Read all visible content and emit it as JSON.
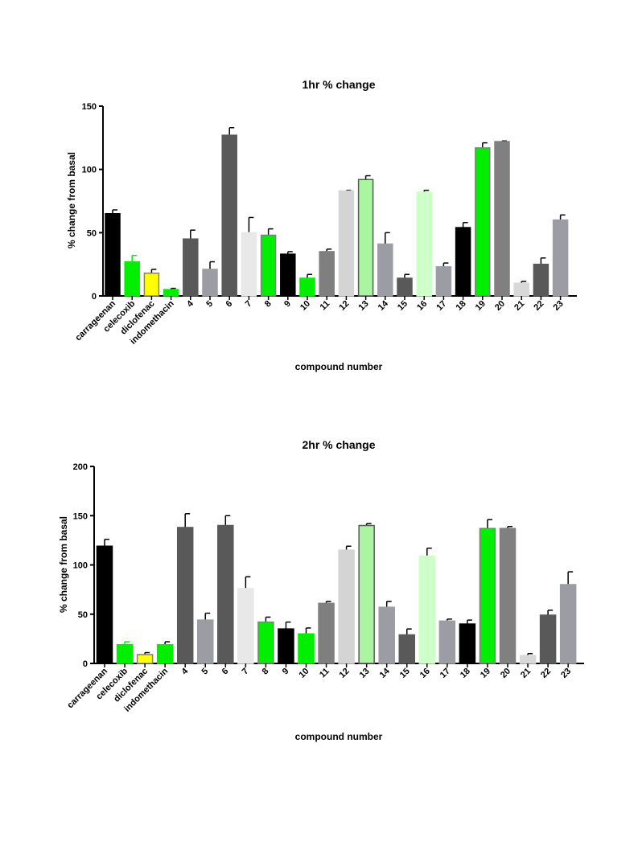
{
  "chart_data": [
    {
      "type": "bar",
      "title": "1hr % change",
      "xlabel": "compound number",
      "ylabel": "% change from basal",
      "ylim": [
        0,
        150
      ],
      "yticks": [
        0,
        50,
        100,
        150
      ],
      "grid": false,
      "categories": [
        "carrageenan",
        "celecoxib",
        "diclofenac",
        "indomethacin",
        "4",
        "5",
        "6",
        "7",
        "8",
        "9",
        "10",
        "11",
        "12",
        "13",
        "14",
        "15",
        "16",
        "17",
        "18",
        "19",
        "20",
        "21",
        "22",
        "23"
      ],
      "values": [
        65,
        27,
        18,
        5,
        45,
        21,
        127,
        50,
        48,
        33,
        14,
        35,
        83,
        92,
        41,
        14,
        82,
        23,
        54,
        117,
        122,
        10,
        25,
        60
      ],
      "errors": [
        3,
        5,
        3,
        1,
        7,
        6,
        6,
        12,
        5,
        2,
        3,
        2,
        0.5,
        3,
        9,
        3,
        1.5,
        3,
        4,
        4,
        0.5,
        1.5,
        5,
        4
      ],
      "fills": [
        "#000000",
        "#00ee00",
        "#ffff00",
        "#00ee00",
        "#595959",
        "#9c9ca4",
        "#595959",
        "#e8e8e8",
        "#00ee00",
        "#000000",
        "#00ee00",
        "#7f7f7f",
        "#d4d4d4",
        "#aaf5a0",
        "#9c9ca4",
        "#595959",
        "#cfffc8",
        "#9c9ca4",
        "#000000",
        "#00ee00",
        "#808080",
        "#d8d8d8",
        "#595959",
        "#9c9ca4"
      ],
      "strokes": [
        "#000000",
        "#00ee00",
        "#808080",
        "#00ee00",
        "#595959",
        "#9c9ca4",
        "#595959",
        "#e8e8e8",
        "#808080",
        "#000000",
        "#00ee00",
        "#7f7f7f",
        "#d4d4d4",
        "#595959",
        "#9c9ca4",
        "#595959",
        "#cfffc8",
        "#9c9ca4",
        "#000000",
        "#808080",
        "#808080",
        "#d8d8d8",
        "#595959",
        "#9c9ca4"
      ],
      "errorColors": [
        "#000000",
        "#00ee00",
        "#000000",
        "#000000",
        "#000000",
        "#000000",
        "#000000",
        "#000000",
        "#000000",
        "#000000",
        "#000000",
        "#000000",
        "#000000",
        "#000000",
        "#000000",
        "#000000",
        "#000000",
        "#000000",
        "#000000",
        "#000000",
        "#000000",
        "#000000",
        "#000000",
        "#000000"
      ]
    },
    {
      "type": "bar",
      "title": "2hr % change",
      "xlabel": "compound number",
      "ylabel": "% change from basal",
      "ylim": [
        0,
        200
      ],
      "yticks": [
        0,
        50,
        100,
        150,
        200
      ],
      "grid": false,
      "categories": [
        "carrageenan",
        "celecoxib",
        "diclofenac",
        "indomethacin",
        "4",
        "5",
        "6",
        "7",
        "8",
        "9",
        "10",
        "11",
        "12",
        "13",
        "14",
        "15",
        "16",
        "17",
        "18",
        "19",
        "20",
        "21",
        "22",
        "23"
      ],
      "values": [
        119,
        19,
        9,
        19,
        138,
        44,
        140,
        76,
        42,
        35,
        30,
        61,
        115,
        140,
        57,
        29,
        109,
        43,
        40,
        137,
        137,
        8,
        49,
        80
      ],
      "errors": [
        7,
        3,
        2,
        3,
        14,
        7,
        10,
        12,
        5,
        7,
        6,
        2,
        4,
        2,
        6,
        6,
        8,
        2,
        4,
        9,
        2,
        2,
        5,
        13
      ],
      "fills": [
        "#000000",
        "#00ee00",
        "#ffff00",
        "#00ee00",
        "#595959",
        "#9c9ca4",
        "#595959",
        "#e8e8e8",
        "#00ee00",
        "#000000",
        "#00ee00",
        "#7f7f7f",
        "#d4d4d4",
        "#aaf5a0",
        "#9c9ca4",
        "#595959",
        "#cfffc8",
        "#9c9ca4",
        "#000000",
        "#00ee00",
        "#808080",
        "#d8d8d8",
        "#595959",
        "#9c9ca4"
      ],
      "strokes": [
        "#000000",
        "#00ee00",
        "#808080",
        "#00ee00",
        "#595959",
        "#9c9ca4",
        "#595959",
        "#e8e8e8",
        "#808080",
        "#000000",
        "#00ee00",
        "#7f7f7f",
        "#d4d4d4",
        "#595959",
        "#9c9ca4",
        "#595959",
        "#cfffc8",
        "#9c9ca4",
        "#000000",
        "#808080",
        "#808080",
        "#d8d8d8",
        "#595959",
        "#9c9ca4"
      ],
      "errorColors": [
        "#000000",
        "#00ee00",
        "#000000",
        "#000000",
        "#000000",
        "#000000",
        "#000000",
        "#000000",
        "#000000",
        "#000000",
        "#000000",
        "#000000",
        "#000000",
        "#000000",
        "#000000",
        "#000000",
        "#000000",
        "#000000",
        "#000000",
        "#000000",
        "#000000",
        "#000000",
        "#000000",
        "#000000"
      ]
    }
  ]
}
